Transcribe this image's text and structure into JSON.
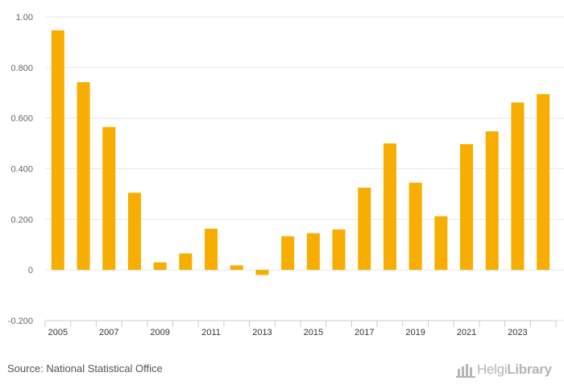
{
  "chart_data": {
    "type": "bar",
    "title": "",
    "xlabel": "",
    "ylabel": "",
    "ylim": [
      -0.2,
      1.0
    ],
    "yticks": [
      -0.2,
      0,
      0.2,
      0.4,
      0.6,
      0.8,
      1.0
    ],
    "ytick_labels": [
      "-0.200",
      "0",
      "0.200",
      "0.400",
      "0.600",
      "0.800",
      "1.00"
    ],
    "categories": [
      "2005",
      "2006",
      "2007",
      "2008",
      "2009",
      "2010",
      "2011",
      "2012",
      "2013",
      "2014",
      "2015",
      "2016",
      "2017",
      "2018",
      "2019",
      "2020",
      "2021",
      "2022",
      "2023",
      "2024"
    ],
    "xtick_labels": [
      "2005",
      "2007",
      "2009",
      "2011",
      "2013",
      "2015",
      "2017",
      "2019",
      "2021",
      "2023"
    ],
    "values": [
      0.947,
      0.742,
      0.565,
      0.305,
      0.03,
      0.065,
      0.163,
      0.018,
      -0.02,
      0.133,
      0.145,
      0.16,
      0.325,
      0.5,
      0.345,
      0.212,
      0.497,
      0.548,
      0.662,
      0.695
    ],
    "bar_color": "#f7ae00",
    "grid": true
  },
  "footer": {
    "source": "Source: National Statistical Office",
    "logo_regular": "Helgi",
    "logo_bold": "Library"
  }
}
